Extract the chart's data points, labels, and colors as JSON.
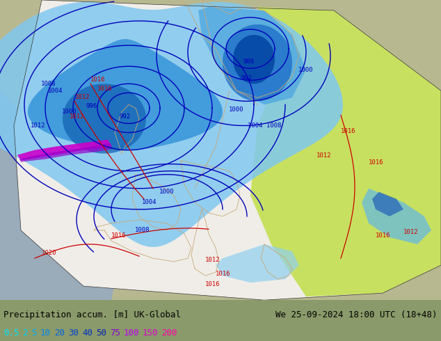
{
  "title_left": "Precipitation accum. [m] UK-Global",
  "title_right": "We 25-09-2024 18:00 UTC (18+48)",
  "legend_values": [
    "0.5",
    "2",
    "5",
    "10",
    "20",
    "30",
    "40",
    "50",
    "75",
    "100",
    "150",
    "200"
  ],
  "legend_colors": [
    "#00ffff",
    "#00e5ff",
    "#00ccff",
    "#00aaff",
    "#0088ff",
    "#0066ff",
    "#0044ff",
    "#0022ff",
    "#cc00ff",
    "#ff00ff",
    "#ff00cc",
    "#ff0099"
  ],
  "bg_color": "#8a9a6a",
  "map_bg": "#c8c8a0",
  "sea_color": "#a0b0c0",
  "font_family": "monospace",
  "title_fontsize": 9,
  "legend_fontsize": 9,
  "fig_width": 6.34,
  "fig_height": 4.9,
  "dpi": 100
}
